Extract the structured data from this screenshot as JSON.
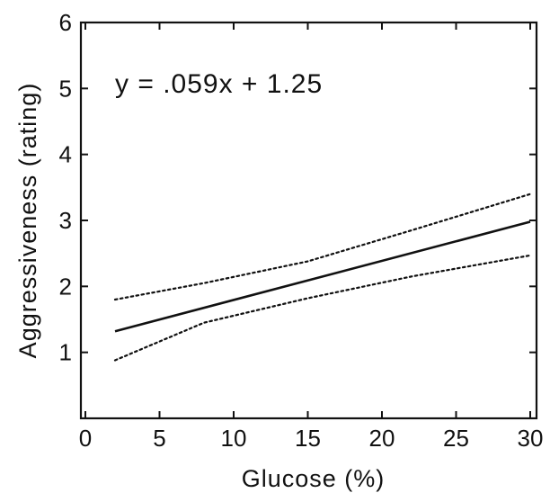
{
  "chart_data": {
    "type": "line",
    "title": "",
    "xlabel": "Glucose (%)",
    "ylabel": "Aggressiveness (rating)",
    "xlim": [
      0,
      30
    ],
    "ylim": [
      0,
      6
    ],
    "x_ticks": [
      0,
      5,
      10,
      15,
      20,
      25,
      30
    ],
    "x_tick_labels": [
      "0",
      "5",
      "10",
      "15",
      "20",
      "25",
      "30"
    ],
    "y_ticks": [
      1,
      2,
      3,
      4,
      5,
      6
    ],
    "y_tick_labels": [
      "1",
      "2",
      "3",
      "4",
      "5",
      "6"
    ],
    "grid": false,
    "annotations": [
      {
        "text": "y = .059x + 1.25"
      }
    ],
    "series": [
      {
        "style": "solid",
        "x": [
          2,
          30
        ],
        "y": [
          1.32,
          2.98
        ]
      },
      {
        "style": "dotted",
        "x": [
          2,
          8,
          15,
          22,
          30
        ],
        "y": [
          1.8,
          2.05,
          2.38,
          2.85,
          3.4
        ]
      },
      {
        "style": "dotted",
        "x": [
          2,
          8,
          15,
          22,
          30
        ],
        "y": [
          0.88,
          1.45,
          1.82,
          2.15,
          2.47
        ]
      }
    ],
    "colors": {
      "line": "#111111"
    }
  }
}
